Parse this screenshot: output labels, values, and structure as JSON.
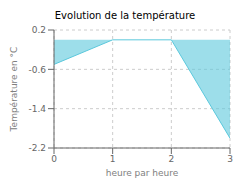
{
  "chart_data": {
    "type": "area",
    "title": "Evolution de la température",
    "xlabel": "heure par heure",
    "ylabel": "Température en °C",
    "x": [
      0,
      1,
      2,
      3
    ],
    "values": [
      -0.5,
      0.0,
      0.0,
      -2.0
    ],
    "color": "#5bc8dc",
    "xlim": [
      0,
      3
    ],
    "ylim": [
      -2.2,
      0.2
    ],
    "xticks": [
      0,
      1,
      2,
      3
    ],
    "yticks": [
      0.2,
      -0.6,
      -1.4,
      -2.2
    ],
    "grid": true
  }
}
